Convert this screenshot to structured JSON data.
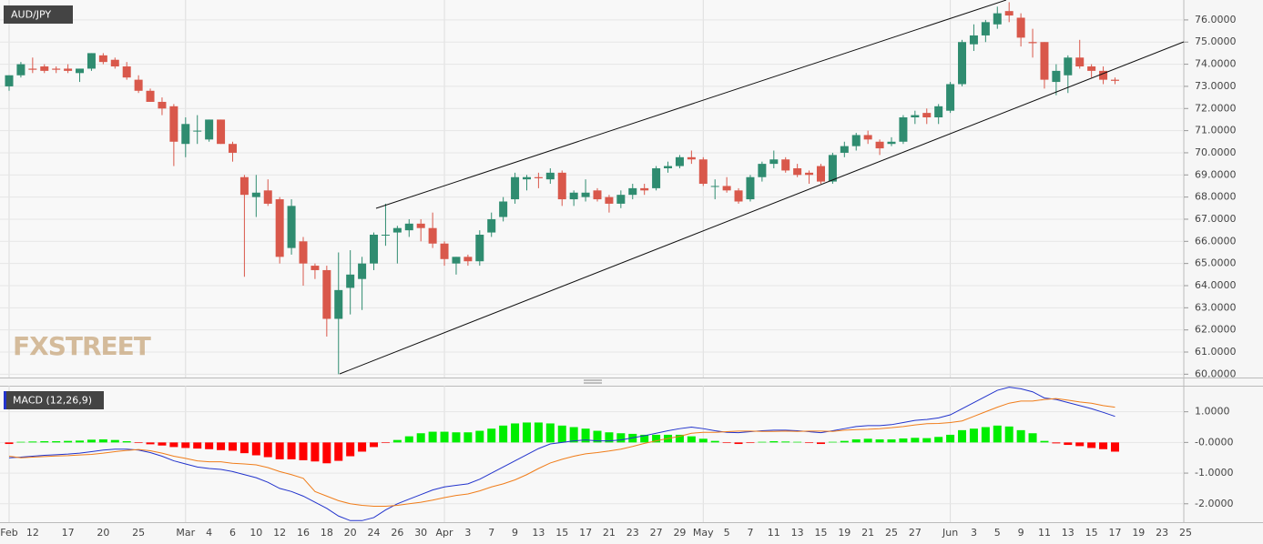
{
  "chart_data": [
    {
      "type": "candlestick",
      "title": "AUD/JPY",
      "logo": "FXSTREET",
      "up_color": "#2f8c70",
      "down_color": "#d9584b",
      "grid": true,
      "open": [
        73.0,
        73.5,
        73.8,
        73.9,
        73.8,
        73.8,
        73.6,
        73.8,
        74.4,
        74.2,
        73.9,
        73.3,
        72.8,
        72.3,
        72.1,
        70.4,
        71.0,
        70.6,
        71.5,
        70.4,
        68.9,
        68.0,
        68.3,
        67.9,
        65.7,
        66.0,
        64.9,
        64.7,
        62.5,
        63.9,
        64.3,
        65.0,
        66.3,
        66.4,
        66.5,
        66.8,
        66.6,
        65.9,
        65.0,
        65.3,
        65.1,
        66.4,
        67.1,
        67.9,
        68.8,
        68.9,
        68.8,
        69.1,
        67.9,
        68.0,
        68.3,
        68.0,
        67.7,
        68.1,
        68.4,
        68.4,
        69.3,
        69.4,
        69.8,
        69.7,
        68.5,
        68.5,
        68.3,
        67.9,
        68.9,
        69.5,
        69.7,
        69.3,
        69.1,
        69.4,
        68.7,
        70.0,
        70.3,
        70.8,
        70.5,
        70.4,
        70.5,
        71.6,
        71.8,
        71.6,
        71.9,
        73.1,
        74.9,
        75.3,
        75.8,
        76.4,
        76.1,
        75.0,
        75.0,
        73.2,
        73.5,
        74.3,
        73.9,
        73.7,
        73.3,
        null,
        null,
        null,
        null,
        null,
        null
      ],
      "high": [
        73.5,
        74.1,
        74.3,
        74.0,
        73.9,
        74.0,
        73.8,
        74.5,
        74.5,
        74.3,
        74.1,
        73.5,
        72.9,
        72.5,
        72.2,
        71.6,
        71.7,
        71.5,
        71.5,
        70.5,
        69.0,
        69.0,
        68.8,
        68.0,
        67.9,
        66.2,
        65.0,
        64.9,
        65.5,
        65.6,
        65.3,
        66.4,
        67.7,
        66.7,
        67.0,
        67.0,
        67.3,
        66.0,
        65.3,
        65.4,
        66.5,
        67.3,
        68.0,
        69.1,
        69.0,
        69.1,
        69.3,
        69.2,
        68.3,
        68.8,
        68.4,
        68.1,
        68.3,
        68.6,
        68.6,
        69.4,
        69.6,
        69.9,
        70.1,
        69.8,
        68.8,
        68.9,
        68.4,
        69.0,
        69.6,
        70.1,
        69.8,
        69.5,
        69.2,
        69.5,
        70.0,
        70.5,
        70.9,
        71.0,
        70.6,
        70.7,
        71.7,
        71.9,
        72.0,
        72.2,
        73.2,
        75.1,
        75.8,
        76.0,
        76.6,
        76.8,
        76.3,
        75.6,
        75.0,
        74.0,
        74.4,
        75.1,
        74.0,
        73.9,
        73.4,
        null,
        null,
        null,
        null,
        null,
        null
      ],
      "low": [
        72.8,
        73.4,
        73.6,
        73.6,
        73.6,
        73.6,
        73.2,
        73.7,
        74.0,
        73.8,
        73.3,
        72.7,
        72.3,
        71.7,
        69.4,
        69.8,
        70.4,
        70.5,
        70.4,
        69.6,
        64.4,
        67.1,
        67.6,
        65.0,
        65.4,
        64.0,
        64.3,
        61.7,
        60.0,
        62.7,
        62.9,
        64.7,
        65.8,
        65.0,
        66.2,
        66.0,
        65.7,
        64.9,
        64.5,
        64.9,
        64.9,
        66.2,
        66.9,
        67.7,
        68.3,
        68.4,
        68.6,
        67.6,
        67.6,
        67.8,
        67.8,
        67.3,
        67.5,
        67.9,
        68.1,
        68.3,
        69.1,
        69.3,
        69.5,
        68.5,
        67.9,
        68.2,
        67.7,
        67.8,
        68.7,
        69.3,
        69.1,
        68.9,
        68.6,
        68.6,
        68.6,
        69.8,
        70.1,
        70.4,
        69.9,
        70.3,
        70.4,
        71.3,
        71.3,
        71.3,
        71.8,
        73.0,
        74.6,
        75.0,
        75.6,
        75.9,
        74.8,
        74.3,
        72.9,
        72.6,
        72.7,
        73.8,
        73.4,
        73.1,
        73.1,
        null,
        null,
        null,
        null,
        null,
        null
      ],
      "close": [
        73.5,
        74.0,
        73.75,
        73.7,
        73.75,
        73.7,
        73.8,
        74.5,
        74.1,
        73.9,
        73.4,
        72.8,
        72.3,
        72.0,
        70.5,
        71.3,
        71.0,
        71.5,
        70.4,
        70.0,
        68.1,
        68.2,
        67.7,
        65.3,
        67.6,
        65.0,
        64.7,
        62.5,
        63.8,
        64.5,
        65.0,
        66.3,
        66.3,
        66.6,
        66.8,
        66.6,
        65.9,
        65.2,
        65.3,
        65.1,
        66.3,
        67.0,
        67.8,
        68.9,
        68.9,
        68.85,
        69.1,
        67.9,
        68.2,
        68.2,
        67.9,
        67.7,
        68.1,
        68.4,
        68.3,
        69.3,
        69.4,
        69.8,
        69.7,
        68.6,
        68.5,
        68.3,
        67.8,
        68.9,
        69.5,
        69.7,
        69.2,
        69.0,
        69.0,
        68.7,
        69.9,
        70.3,
        70.8,
        70.6,
        70.2,
        70.5,
        71.6,
        71.7,
        71.6,
        72.1,
        73.1,
        75.0,
        75.3,
        75.9,
        76.3,
        76.2,
        75.2,
        74.95,
        73.3,
        73.7,
        74.3,
        73.9,
        73.7,
        73.3,
        73.25,
        null,
        null,
        null,
        null,
        null,
        null
      ],
      "ylim": [
        59.85,
        76.9
      ],
      "yticks": [
        {
          "value": 60,
          "label": "60.0000"
        },
        {
          "value": 61,
          "label": "61.0000"
        },
        {
          "value": 62,
          "label": "62.0000"
        },
        {
          "value": 63,
          "label": "63.0000"
        },
        {
          "value": 64,
          "label": "64.0000"
        },
        {
          "value": 65,
          "label": "65.0000"
        },
        {
          "value": 66,
          "label": "66.0000"
        },
        {
          "value": 67,
          "label": "67.0000"
        },
        {
          "value": 68,
          "label": "68.0000"
        },
        {
          "value": 69,
          "label": "69.0000"
        },
        {
          "value": 70,
          "label": "70.0000"
        },
        {
          "value": 71,
          "label": "71.0000"
        },
        {
          "value": 72,
          "label": "72.0000"
        },
        {
          "value": 73,
          "label": "73.0000"
        },
        {
          "value": 74,
          "label": "74.0000"
        },
        {
          "value": 75,
          "label": "75.0000"
        },
        {
          "value": 76,
          "label": "76.0000"
        }
      ]
    },
    {
      "type": "macd",
      "title": "MACD (12,26,9)",
      "grid": true,
      "categories": [
        "Feb",
        null,
        "12",
        null,
        null,
        "17",
        null,
        null,
        "20",
        null,
        null,
        "25",
        null,
        null,
        null,
        "Mar",
        null,
        "4",
        null,
        "6",
        null,
        "10",
        null,
        "12",
        null,
        "16",
        null,
        "18",
        null,
        "20",
        null,
        "24",
        null,
        "26",
        null,
        "30",
        null,
        "Apr",
        null,
        "3",
        null,
        "7",
        null,
        "9",
        null,
        "13",
        null,
        "15",
        null,
        "17",
        null,
        "21",
        null,
        "23",
        null,
        "27",
        null,
        "29",
        null,
        "May",
        null,
        "5",
        null,
        "7",
        null,
        "11",
        null,
        "13",
        null,
        "15",
        null,
        "19",
        null,
        "21",
        null,
        "25",
        null,
        "27",
        null,
        null,
        "Jun",
        null,
        "3",
        null,
        "5",
        null,
        "9",
        null,
        "11",
        null,
        "13",
        null,
        "15",
        null,
        "17",
        null,
        "19",
        null,
        "23",
        null,
        "25"
      ],
      "histogram": [
        -0.05,
        0.02,
        0.03,
        0.04,
        0.04,
        0.05,
        0.06,
        0.09,
        0.1,
        0.08,
        0.04,
        -0.02,
        -0.06,
        -0.1,
        -0.15,
        -0.18,
        -0.2,
        -0.22,
        -0.25,
        -0.27,
        -0.35,
        -0.42,
        -0.48,
        -0.55,
        -0.55,
        -0.58,
        -0.62,
        -0.68,
        -0.6,
        -0.45,
        -0.3,
        -0.15,
        -0.02,
        0.08,
        0.2,
        0.3,
        0.35,
        0.35,
        0.33,
        0.33,
        0.38,
        0.45,
        0.55,
        0.62,
        0.65,
        0.65,
        0.62,
        0.55,
        0.5,
        0.45,
        0.38,
        0.33,
        0.3,
        0.28,
        0.25,
        0.25,
        0.25,
        0.25,
        0.2,
        0.12,
        0.05,
        -0.02,
        -0.05,
        -0.02,
        0.02,
        0.04,
        0.03,
        0.02,
        -0.02,
        -0.05,
        0.02,
        0.05,
        0.1,
        0.12,
        0.1,
        0.1,
        0.13,
        0.15,
        0.14,
        0.18,
        0.25,
        0.4,
        0.45,
        0.5,
        0.55,
        0.52,
        0.4,
        0.3,
        0.05,
        -0.03,
        -0.08,
        -0.12,
        -0.18,
        -0.22,
        -0.3,
        null,
        null,
        null,
        null,
        null,
        null
      ],
      "positive_color": "#00ee00",
      "negative_color": "#ff0000",
      "series": [
        {
          "color": "#2233cc",
          "values": [
            -0.5,
            -0.48,
            -0.45,
            -0.42,
            -0.4,
            -0.38,
            -0.35,
            -0.3,
            -0.25,
            -0.22,
            -0.22,
            -0.25,
            -0.33,
            -0.45,
            -0.6,
            -0.7,
            -0.8,
            -0.85,
            -0.88,
            -0.95,
            -1.05,
            -1.15,
            -1.3,
            -1.5,
            -1.6,
            -1.75,
            -1.95,
            -2.15,
            -2.4,
            -2.55,
            -2.55,
            -2.45,
            -2.2,
            -2.0,
            -1.85,
            -1.7,
            -1.55,
            -1.45,
            -1.4,
            -1.35,
            -1.2,
            -1.0,
            -0.8,
            -0.6,
            -0.4,
            -0.2,
            -0.05,
            0.0,
            0.05,
            0.08,
            0.05,
            0.05,
            0.08,
            0.15,
            0.22,
            0.3,
            0.38,
            0.45,
            0.5,
            0.45,
            0.38,
            0.33,
            0.32,
            0.35,
            0.38,
            0.4,
            0.4,
            0.38,
            0.35,
            0.32,
            0.38,
            0.45,
            0.52,
            0.55,
            0.55,
            0.58,
            0.65,
            0.72,
            0.75,
            0.8,
            0.9,
            1.1,
            1.3,
            1.5,
            1.7,
            1.8,
            1.75,
            1.65,
            1.45,
            1.4,
            1.3,
            1.2,
            1.1,
            0.98,
            0.85,
            null,
            null,
            null,
            null,
            null,
            null
          ]
        },
        {
          "color": "#f07d1a",
          "values": [
            -0.45,
            -0.5,
            -0.48,
            -0.46,
            -0.44,
            -0.43,
            -0.41,
            -0.39,
            -0.35,
            -0.3,
            -0.26,
            -0.23,
            -0.27,
            -0.35,
            -0.45,
            -0.52,
            -0.6,
            -0.63,
            -0.63,
            -0.68,
            -0.7,
            -0.73,
            -0.82,
            -0.95,
            -1.05,
            -1.17,
            -1.6,
            -1.75,
            -1.9,
            -2.0,
            -2.05,
            -2.08,
            -2.08,
            -2.05,
            -2.0,
            -1.95,
            -1.88,
            -1.8,
            -1.73,
            -1.68,
            -1.58,
            -1.45,
            -1.35,
            -1.22,
            -1.05,
            -0.85,
            -0.67,
            -0.55,
            -0.45,
            -0.37,
            -0.33,
            -0.28,
            -0.22,
            -0.13,
            -0.03,
            0.05,
            0.13,
            0.2,
            0.3,
            0.33,
            0.33,
            0.35,
            0.37,
            0.37,
            0.36,
            0.36,
            0.37,
            0.36,
            0.37,
            0.37,
            0.36,
            0.4,
            0.42,
            0.43,
            0.45,
            0.48,
            0.52,
            0.57,
            0.61,
            0.62,
            0.65,
            0.7,
            0.85,
            1.0,
            1.15,
            1.28,
            1.35,
            1.35,
            1.4,
            1.43,
            1.38,
            1.32,
            1.28,
            1.2,
            1.15,
            null,
            null,
            null,
            null,
            null,
            null
          ]
        }
      ],
      "ylim": [
        -2.6,
        1.85
      ],
      "yticks": [
        {
          "value": -2,
          "label": "-2.0000"
        },
        {
          "value": -1,
          "label": "-1.0000"
        },
        {
          "value": 0,
          "label": "-0.0000"
        },
        {
          "value": 1,
          "label": "1.0000"
        }
      ]
    }
  ]
}
